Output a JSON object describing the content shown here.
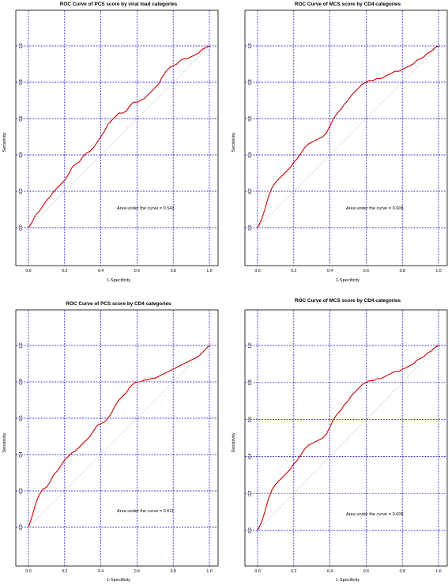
{
  "chart_data": [
    {
      "type": "line",
      "title": "ROC Curve of PCS score by viral load categories",
      "xlabel": "1-Specificity",
      "ylabel": "Sensitivity",
      "xlim": [
        0,
        1
      ],
      "ylim": [
        0,
        1
      ],
      "xticks": [
        "0.0",
        "0.2",
        "0.4",
        "0.6",
        "0.8",
        "1.0"
      ],
      "yticks": [
        "0.0",
        "0.2",
        "0.4",
        "0.6",
        "0.8",
        "1.0"
      ],
      "grid": true,
      "annotation": "Area under the curve = 0.543",
      "colors": {
        "curve": "#cc0000",
        "grid": "#0000cc",
        "diagonal": "#999999"
      },
      "series": [
        {
          "x": [
            0.0,
            0.02,
            0.04,
            0.06,
            0.08,
            0.1,
            0.12,
            0.14,
            0.16,
            0.18,
            0.2,
            0.22,
            0.24,
            0.26,
            0.28,
            0.3,
            0.32,
            0.34,
            0.36,
            0.38,
            0.4,
            0.42,
            0.44,
            0.46,
            0.48,
            0.5,
            0.52,
            0.54,
            0.56,
            0.58,
            0.6,
            0.62,
            0.64,
            0.66,
            0.68,
            0.7,
            0.72,
            0.74,
            0.76,
            0.78,
            0.8,
            0.82,
            0.84,
            0.86,
            0.88,
            0.9,
            0.92,
            0.94,
            0.96,
            0.98,
            1.0
          ],
          "y": [
            0.0,
            0.03,
            0.07,
            0.09,
            0.12,
            0.15,
            0.17,
            0.2,
            0.22,
            0.24,
            0.26,
            0.29,
            0.33,
            0.35,
            0.36,
            0.39,
            0.41,
            0.42,
            0.44,
            0.47,
            0.5,
            0.53,
            0.57,
            0.59,
            0.61,
            0.63,
            0.63,
            0.64,
            0.67,
            0.69,
            0.69,
            0.7,
            0.71,
            0.73,
            0.75,
            0.77,
            0.79,
            0.83,
            0.86,
            0.88,
            0.89,
            0.9,
            0.92,
            0.93,
            0.93,
            0.94,
            0.95,
            0.96,
            0.98,
            0.99,
            1.0
          ]
        }
      ]
    },
    {
      "type": "line",
      "title": "ROC Curve of MCS score by CD4 categories",
      "xlabel": "1-Specificity",
      "ylabel": "Sensitivity",
      "xlim": [
        0,
        1
      ],
      "ylim": [
        0,
        1
      ],
      "xticks": [
        "0.0",
        "0.2",
        "0.4",
        "0.6",
        "0.8",
        "1.0"
      ],
      "yticks": [
        "0.0",
        "0.2",
        "0.4",
        "0.6",
        "0.8",
        "1.0"
      ],
      "grid": true,
      "annotation": "Area under the curve = 0.606",
      "colors": {
        "curve": "#cc0000",
        "grid": "#0000cc",
        "diagonal": "#999999"
      },
      "series": [
        {
          "x": [
            0.0,
            0.02,
            0.04,
            0.06,
            0.08,
            0.1,
            0.12,
            0.14,
            0.16,
            0.18,
            0.2,
            0.22,
            0.24,
            0.26,
            0.28,
            0.3,
            0.32,
            0.34,
            0.36,
            0.38,
            0.4,
            0.42,
            0.44,
            0.46,
            0.48,
            0.5,
            0.52,
            0.54,
            0.56,
            0.58,
            0.6,
            0.62,
            0.64,
            0.66,
            0.68,
            0.7,
            0.72,
            0.74,
            0.76,
            0.78,
            0.8,
            0.82,
            0.84,
            0.86,
            0.88,
            0.9,
            0.92,
            0.94,
            0.96,
            0.98,
            1.0
          ],
          "y": [
            0.0,
            0.04,
            0.1,
            0.17,
            0.22,
            0.25,
            0.27,
            0.29,
            0.31,
            0.33,
            0.36,
            0.38,
            0.41,
            0.44,
            0.46,
            0.47,
            0.48,
            0.49,
            0.5,
            0.52,
            0.56,
            0.6,
            0.63,
            0.65,
            0.68,
            0.7,
            0.73,
            0.75,
            0.77,
            0.79,
            0.8,
            0.81,
            0.81,
            0.82,
            0.82,
            0.83,
            0.84,
            0.85,
            0.86,
            0.86,
            0.87,
            0.88,
            0.89,
            0.9,
            0.92,
            0.93,
            0.94,
            0.96,
            0.97,
            0.99,
            1.0
          ]
        }
      ]
    },
    {
      "type": "line",
      "title": "ROC Curve of PCS score by CD4 categories",
      "xlabel": "1-Specificity",
      "ylabel": "Sensitivity",
      "xlim": [
        0,
        1
      ],
      "ylim": [
        0,
        1
      ],
      "xticks": [
        "0.0",
        "0.2",
        "0.4",
        "0.6",
        "0.8",
        "1.0"
      ],
      "yticks": [
        "0.0",
        "0.2",
        "0.4",
        "0.6",
        "0.8",
        "1.0"
      ],
      "grid": true,
      "annotation": "Area under the curve = 0.611",
      "colors": {
        "curve": "#cc0000",
        "grid": "#0000cc",
        "diagonal": "#999999"
      },
      "series": [
        {
          "x": [
            0.0,
            0.02,
            0.04,
            0.06,
            0.08,
            0.1,
            0.12,
            0.14,
            0.16,
            0.18,
            0.2,
            0.22,
            0.24,
            0.26,
            0.28,
            0.3,
            0.32,
            0.34,
            0.36,
            0.38,
            0.4,
            0.42,
            0.44,
            0.46,
            0.48,
            0.5,
            0.52,
            0.54,
            0.56,
            0.58,
            0.6,
            0.62,
            0.64,
            0.66,
            0.68,
            0.7,
            0.72,
            0.74,
            0.76,
            0.78,
            0.8,
            0.82,
            0.84,
            0.86,
            0.88,
            0.9,
            0.92,
            0.94,
            0.96,
            0.98,
            1.0
          ],
          "y": [
            0.0,
            0.06,
            0.13,
            0.18,
            0.21,
            0.22,
            0.25,
            0.29,
            0.31,
            0.34,
            0.37,
            0.39,
            0.41,
            0.42,
            0.44,
            0.46,
            0.48,
            0.5,
            0.53,
            0.56,
            0.57,
            0.58,
            0.6,
            0.63,
            0.67,
            0.7,
            0.72,
            0.74,
            0.77,
            0.79,
            0.8,
            0.8,
            0.81,
            0.81,
            0.82,
            0.82,
            0.83,
            0.84,
            0.85,
            0.86,
            0.87,
            0.88,
            0.89,
            0.9,
            0.91,
            0.92,
            0.93,
            0.94,
            0.96,
            0.98,
            1.0
          ]
        }
      ]
    },
    {
      "type": "line",
      "title": "ROC Curve of MCS score by CD4 categories",
      "xlabel": "1-Specificity",
      "ylabel": "Sensitivity",
      "xlim": [
        0,
        1
      ],
      "ylim": [
        0,
        1
      ],
      "xticks": [
        "0.0",
        "0.2",
        "0.4",
        "0.6",
        "0.8",
        "1.0"
      ],
      "yticks": [
        "0.0",
        "0.2",
        "0.4",
        "0.6",
        "0.8",
        "1.0"
      ],
      "grid": true,
      "annotation": "Area under the curve = 0.606",
      "colors": {
        "curve": "#cc0000",
        "grid": "#0000cc",
        "diagonal": "#999999"
      },
      "series": [
        {
          "x": [
            0.0,
            0.02,
            0.04,
            0.06,
            0.08,
            0.1,
            0.12,
            0.14,
            0.16,
            0.18,
            0.2,
            0.22,
            0.24,
            0.26,
            0.28,
            0.3,
            0.32,
            0.34,
            0.36,
            0.38,
            0.4,
            0.42,
            0.44,
            0.46,
            0.48,
            0.5,
            0.52,
            0.54,
            0.56,
            0.58,
            0.6,
            0.62,
            0.64,
            0.66,
            0.68,
            0.7,
            0.72,
            0.74,
            0.76,
            0.78,
            0.8,
            0.82,
            0.84,
            0.86,
            0.88,
            0.9,
            0.92,
            0.94,
            0.96,
            0.98,
            1.0
          ],
          "y": [
            0.0,
            0.04,
            0.1,
            0.17,
            0.22,
            0.25,
            0.27,
            0.29,
            0.31,
            0.33,
            0.36,
            0.38,
            0.41,
            0.44,
            0.46,
            0.47,
            0.48,
            0.49,
            0.5,
            0.52,
            0.56,
            0.6,
            0.63,
            0.65,
            0.68,
            0.7,
            0.73,
            0.75,
            0.77,
            0.79,
            0.8,
            0.81,
            0.81,
            0.82,
            0.82,
            0.83,
            0.84,
            0.85,
            0.86,
            0.86,
            0.87,
            0.88,
            0.89,
            0.9,
            0.92,
            0.93,
            0.94,
            0.96,
            0.97,
            0.99,
            1.0
          ]
        }
      ]
    }
  ]
}
